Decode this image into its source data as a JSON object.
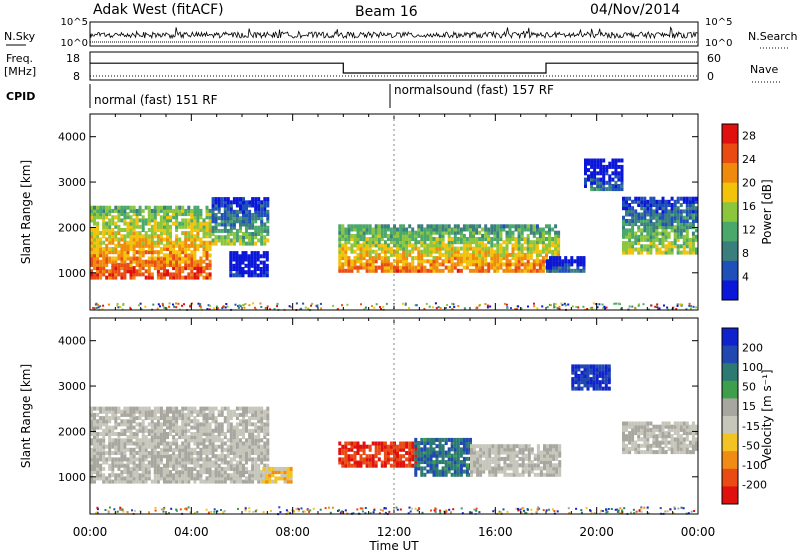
{
  "header": {
    "title": "Adak West (fitACF)",
    "beam": "Beam 16",
    "date": "04/Nov/2014"
  },
  "status_panels": {
    "nsky_label": "N.Sky",
    "nsearch_label": "N.Search",
    "freq_label_1": "Freq.",
    "freq_label_2": "[MHz]",
    "nave_label": "Nave",
    "cpid_label": "CPID",
    "left_ticks_top": [
      "10^5",
      "10^0"
    ],
    "right_ticks_top": [
      "10^5",
      "10^0"
    ],
    "freq_ticks": [
      "18",
      "8"
    ],
    "nave_ticks": [
      "60",
      "0"
    ],
    "cpid_segments": [
      {
        "label": "normal (fast) 151 RF",
        "start": 0,
        "end": 12
      },
      {
        "label": "normalsound (fast) 157 RF",
        "start": 12,
        "end": 24
      }
    ],
    "freq_steps": [
      {
        "start": 0,
        "end": 10,
        "value": 14
      },
      {
        "start": 10,
        "end": 18,
        "value": 10.5
      },
      {
        "start": 18,
        "end": 24,
        "value": 14
      }
    ]
  },
  "colors": {
    "power_scale": [
      "#0a16d8",
      "#1f4fb8",
      "#3b7e7e",
      "#4aa86a",
      "#8cc63c",
      "#f3c20a",
      "#f08a0c",
      "#ea4b12",
      "#e0100f"
    ],
    "velocity_scale": [
      "#1022cc",
      "#2048b0",
      "#2c7a72",
      "#3d9e4c",
      "#a7a7a0",
      "#c6c6bb",
      "#f2c322",
      "#f08c14",
      "#ea4b12",
      "#e0100f"
    ]
  },
  "chart_data": [
    {
      "type": "heatmap",
      "panel": "power",
      "title": "",
      "xlabel": "Time UT",
      "ylabel": "Slant Range [km]",
      "x_ticks": [
        "00:00",
        "04:00",
        "08:00",
        "12:00",
        "16:00",
        "20:00",
        "00:00"
      ],
      "y_ticks": [
        "1000",
        "2000",
        "3000",
        "4000"
      ],
      "xlim": [
        0,
        24
      ],
      "ylim": [
        180,
        4500
      ],
      "colorbar": {
        "label": "Power [dB]",
        "ticks": [
          "4",
          "8",
          "12",
          "16",
          "20",
          "24",
          "28"
        ],
        "range": [
          0,
          30
        ]
      },
      "regions": [
        {
          "t0": 0.0,
          "t1": 4.8,
          "r0": 850,
          "r1": 2450,
          "level": 0.85
        },
        {
          "t0": 4.8,
          "t1": 7.0,
          "r0": 1600,
          "r1": 2600,
          "level": 0.5
        },
        {
          "t0": 5.5,
          "t1": 7.0,
          "r0": 900,
          "r1": 1400,
          "level": 0.1
        },
        {
          "t0": 9.8,
          "t1": 18.5,
          "r0": 1000,
          "r1": 2000,
          "level": 0.78
        },
        {
          "t0": 18.0,
          "t1": 19.5,
          "r0": 1000,
          "r1": 1300,
          "level": 0.25
        },
        {
          "t0": 21.0,
          "t1": 24.0,
          "r0": 1400,
          "r1": 2600,
          "level": 0.55
        },
        {
          "t0": 19.5,
          "t1": 21.0,
          "r0": 2800,
          "r1": 3500,
          "level": 0.25
        }
      ]
    },
    {
      "type": "heatmap",
      "panel": "velocity",
      "title": "",
      "xlabel": "Time UT",
      "ylabel": "Slant Range [km]",
      "x_ticks": [
        "00:00",
        "04:00",
        "08:00",
        "12:00",
        "16:00",
        "20:00",
        "00:00"
      ],
      "y_ticks": [
        "1000",
        "2000",
        "3000",
        "4000"
      ],
      "xlim": [
        0,
        24
      ],
      "ylim": [
        180,
        4500
      ],
      "colorbar": {
        "label": "Velocity [m s⁻¹]",
        "ticks": [
          "200",
          "100",
          "50",
          "15",
          "-15",
          "-50",
          "-100",
          "-200"
        ],
        "range": [
          -250,
          250
        ]
      },
      "regions": [
        {
          "t0": 0.0,
          "t1": 7.0,
          "r0": 850,
          "r1": 2500,
          "level": 0.0
        },
        {
          "t0": 6.8,
          "t1": 8.0,
          "r0": 850,
          "r1": 1150,
          "level": -0.3
        },
        {
          "t0": 9.8,
          "t1": 12.8,
          "r0": 1200,
          "r1": 1700,
          "level": -0.8
        },
        {
          "t0": 12.8,
          "t1": 15.0,
          "r0": 1000,
          "r1": 1800,
          "level": 0.55
        },
        {
          "t0": 15.0,
          "t1": 18.5,
          "r0": 1000,
          "r1": 1700,
          "level": 0.0
        },
        {
          "t0": 19.0,
          "t1": 20.5,
          "r0": 2900,
          "r1": 3400,
          "level": 0.8
        },
        {
          "t0": 21.0,
          "t1": 24.0,
          "r0": 1500,
          "r1": 2200,
          "level": 0.0
        }
      ]
    }
  ]
}
